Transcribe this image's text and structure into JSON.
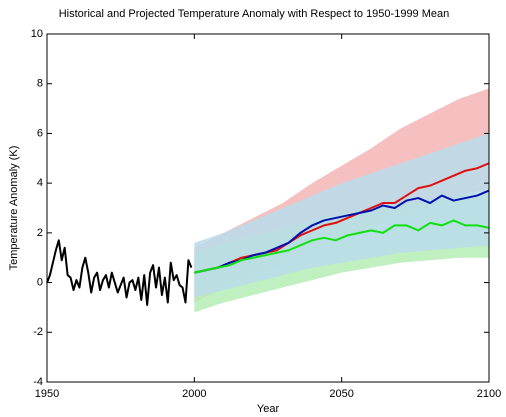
{
  "chart_data": {
    "type": "line",
    "title": "Historical and Projected Temperature Anomaly with Respect to 1950-1999 Mean",
    "xlabel": "Year",
    "ylabel": "Temperature Anomaly (K)",
    "xlim": [
      1950,
      2100
    ],
    "ylim": [
      -4,
      10
    ],
    "xticks": [
      1950,
      2000,
      2050,
      2100
    ],
    "yticks": [
      -4,
      -2,
      0,
      2,
      4,
      6,
      8,
      10
    ],
    "bands": [
      {
        "color": "#f5b5b5",
        "x": [
          2000,
          2010,
          2020,
          2030,
          2040,
          2050,
          2060,
          2070,
          2080,
          2090,
          2100
        ],
        "lower": [
          -0.8,
          -0.2,
          0.3,
          0.8,
          1.3,
          1.8,
          2.3,
          2.7,
          3.1,
          3.5,
          3.8
        ],
        "upper": [
          1.4,
          2.0,
          2.6,
          3.2,
          4.0,
          4.7,
          5.4,
          6.2,
          6.8,
          7.4,
          7.8
        ]
      },
      {
        "color": "#b5ecb5",
        "x": [
          2000,
          2010,
          2020,
          2030,
          2040,
          2050,
          2060,
          2070,
          2080,
          2090,
          2100
        ],
        "lower": [
          -1.2,
          -0.8,
          -0.5,
          -0.2,
          0.1,
          0.4,
          0.6,
          0.8,
          0.9,
          1.0,
          1.0
        ],
        "upper": [
          1.2,
          1.6,
          1.9,
          2.2,
          2.5,
          2.8,
          3.0,
          3.2,
          3.3,
          3.5,
          3.6
        ]
      },
      {
        "color": "#b8dcea",
        "x": [
          2000,
          2010,
          2020,
          2030,
          2040,
          2050,
          2060,
          2070,
          2080,
          2090,
          2100
        ],
        "lower": [
          -0.6,
          -0.3,
          0.0,
          0.3,
          0.6,
          0.8,
          1.0,
          1.2,
          1.3,
          1.4,
          1.5
        ],
        "upper": [
          1.6,
          2.0,
          2.5,
          3.0,
          3.5,
          4.0,
          4.4,
          4.8,
          5.2,
          5.6,
          6.0
        ]
      }
    ],
    "series": [
      {
        "color": "#000000",
        "x": [
          1950,
          1951,
          1952,
          1953,
          1954,
          1955,
          1956,
          1957,
          1958,
          1959,
          1960,
          1961,
          1962,
          1963,
          1964,
          1965,
          1966,
          1967,
          1968,
          1969,
          1970,
          1971,
          1972,
          1973,
          1974,
          1975,
          1976,
          1977,
          1978,
          1979,
          1980,
          1981,
          1982,
          1983,
          1984,
          1985,
          1986,
          1987,
          1988,
          1989,
          1990,
          1991,
          1992,
          1993,
          1994,
          1995,
          1996,
          1997,
          1998,
          1999
        ],
        "values": [
          0.0,
          0.3,
          0.8,
          1.3,
          1.7,
          0.9,
          1.4,
          0.3,
          0.2,
          -0.3,
          0.1,
          -0.2,
          0.6,
          1.0,
          0.4,
          -0.4,
          0.2,
          0.4,
          -0.3,
          0.1,
          0.3,
          -0.2,
          0.4,
          0.0,
          -0.4,
          -0.1,
          0.2,
          -0.6,
          0.0,
          0.1,
          -0.3,
          0.2,
          -0.7,
          0.3,
          -0.9,
          0.4,
          0.7,
          -0.2,
          0.6,
          -0.5,
          0.2,
          -0.8,
          0.8,
          0.1,
          0.3,
          -0.1,
          -0.2,
          -0.8,
          0.9,
          0.6
        ]
      },
      {
        "color": "#e01010",
        "x": [
          2000,
          2004,
          2008,
          2012,
          2016,
          2020,
          2024,
          2028,
          2032,
          2036,
          2040,
          2044,
          2048,
          2052,
          2056,
          2060,
          2064,
          2068,
          2072,
          2076,
          2080,
          2084,
          2088,
          2092,
          2096,
          2100
        ],
        "values": [
          0.4,
          0.5,
          0.6,
          0.8,
          1.0,
          1.1,
          1.2,
          1.3,
          1.6,
          1.9,
          2.1,
          2.3,
          2.4,
          2.6,
          2.8,
          3.0,
          3.2,
          3.2,
          3.5,
          3.8,
          3.9,
          4.1,
          4.3,
          4.5,
          4.6,
          4.8
        ]
      },
      {
        "color": "#0010b0",
        "x": [
          2000,
          2004,
          2008,
          2012,
          2016,
          2020,
          2024,
          2028,
          2032,
          2036,
          2040,
          2044,
          2048,
          2052,
          2056,
          2060,
          2064,
          2068,
          2072,
          2076,
          2080,
          2084,
          2088,
          2092,
          2096,
          2100
        ],
        "values": [
          0.4,
          0.5,
          0.6,
          0.8,
          0.9,
          1.1,
          1.2,
          1.4,
          1.6,
          2.0,
          2.3,
          2.5,
          2.6,
          2.7,
          2.8,
          2.9,
          3.1,
          3.0,
          3.3,
          3.4,
          3.2,
          3.5,
          3.3,
          3.4,
          3.5,
          3.7
        ]
      },
      {
        "color": "#10e010",
        "x": [
          2000,
          2004,
          2008,
          2012,
          2016,
          2020,
          2024,
          2028,
          2032,
          2036,
          2040,
          2044,
          2048,
          2052,
          2056,
          2060,
          2064,
          2068,
          2072,
          2076,
          2080,
          2084,
          2088,
          2092,
          2096,
          2100
        ],
        "values": [
          0.4,
          0.5,
          0.6,
          0.7,
          0.9,
          1.0,
          1.1,
          1.2,
          1.3,
          1.5,
          1.7,
          1.8,
          1.7,
          1.9,
          2.0,
          2.1,
          2.0,
          2.3,
          2.3,
          2.1,
          2.4,
          2.3,
          2.5,
          2.3,
          2.3,
          2.2
        ]
      }
    ]
  }
}
